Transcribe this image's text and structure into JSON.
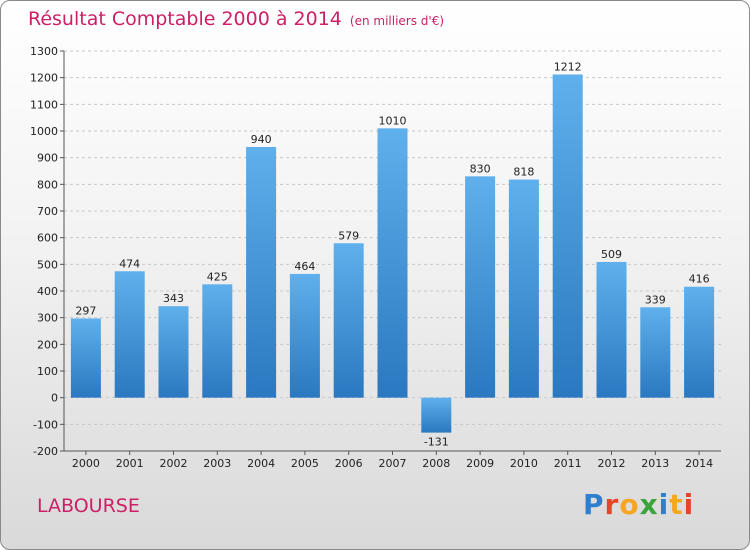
{
  "chart_data": {
    "type": "bar",
    "title": "Résultat Comptable 2000 à 2014",
    "subtitle": "(en milliers d'€)",
    "categories": [
      "2000",
      "2001",
      "2002",
      "2003",
      "2004",
      "2005",
      "2006",
      "2007",
      "2008",
      "2009",
      "2010",
      "2011",
      "2012",
      "2013",
      "2014"
    ],
    "values": [
      297,
      474,
      343,
      425,
      940,
      464,
      579,
      1010,
      -131,
      830,
      818,
      1212,
      509,
      339,
      416
    ],
    "ylim": [
      -200,
      1300
    ],
    "yticks": [
      -200,
      -100,
      0,
      100,
      200,
      300,
      400,
      500,
      600,
      700,
      800,
      900,
      1000,
      1100,
      1200,
      1300
    ],
    "xlabel": "",
    "ylabel": "",
    "grid": true,
    "bar_color": "#3f8fd6"
  },
  "footer": {
    "town": "LABOURSE",
    "brand": [
      "P",
      "r",
      "o",
      "x",
      "i",
      "t",
      "i"
    ],
    "brand_colors": [
      "#2f7fd0",
      "#e8442a",
      "#f5a623",
      "#3aa53a",
      "#2f7fd0",
      "#f5a623",
      "#e8442a"
    ]
  }
}
